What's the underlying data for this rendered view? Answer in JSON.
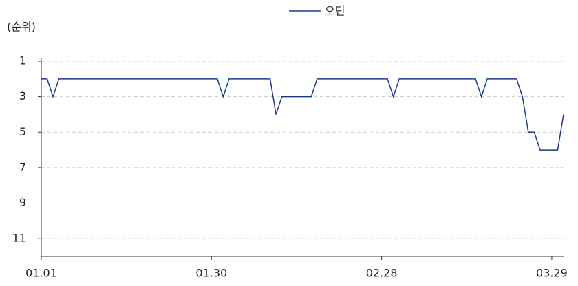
{
  "chart_data": {
    "type": "line",
    "y_label": "(순위)",
    "categories": [
      "01.01",
      null,
      null,
      null,
      null,
      null,
      null,
      null,
      null,
      null,
      null,
      null,
      null,
      null,
      null,
      null,
      null,
      null,
      null,
      null,
      null,
      null,
      null,
      null,
      null,
      null,
      null,
      null,
      null,
      "01.30",
      null,
      null,
      null,
      null,
      null,
      null,
      null,
      null,
      null,
      null,
      null,
      null,
      null,
      null,
      null,
      null,
      null,
      null,
      null,
      null,
      null,
      null,
      null,
      null,
      null,
      null,
      null,
      null,
      "02.28",
      null,
      null,
      null,
      null,
      null,
      null,
      null,
      null,
      null,
      null,
      null,
      null,
      null,
      null,
      null,
      null,
      null,
      null,
      null,
      null,
      null,
      null,
      null,
      null,
      null,
      null,
      null,
      null,
      "03.29",
      null,
      null
    ],
    "series": [
      {
        "name": "오딘",
        "color": "#1a3a8a",
        "values": [
          2,
          2,
          3,
          2,
          2,
          2,
          2,
          2,
          2,
          2,
          2,
          2,
          2,
          2,
          2,
          2,
          2,
          2,
          2,
          2,
          2,
          2,
          2,
          2,
          2,
          2,
          2,
          2,
          2,
          2,
          2,
          3,
          2,
          2,
          2,
          2,
          2,
          2,
          2,
          2,
          4,
          3,
          3,
          3,
          3,
          3,
          3,
          2,
          2,
          2,
          2,
          2,
          2,
          2,
          2,
          2,
          2,
          2,
          2,
          2,
          3,
          2,
          2,
          2,
          2,
          2,
          2,
          2,
          2,
          2,
          2,
          2,
          2,
          2,
          2,
          3,
          2,
          2,
          2,
          2,
          2,
          2,
          3,
          5,
          5,
          6,
          6,
          6,
          6,
          4
        ]
      }
    ],
    "ylim": [
      12,
      1
    ],
    "yticks": [
      1,
      3,
      5,
      7,
      9,
      11
    ],
    "y_inverted": true,
    "grid": true,
    "legend": "top"
  }
}
